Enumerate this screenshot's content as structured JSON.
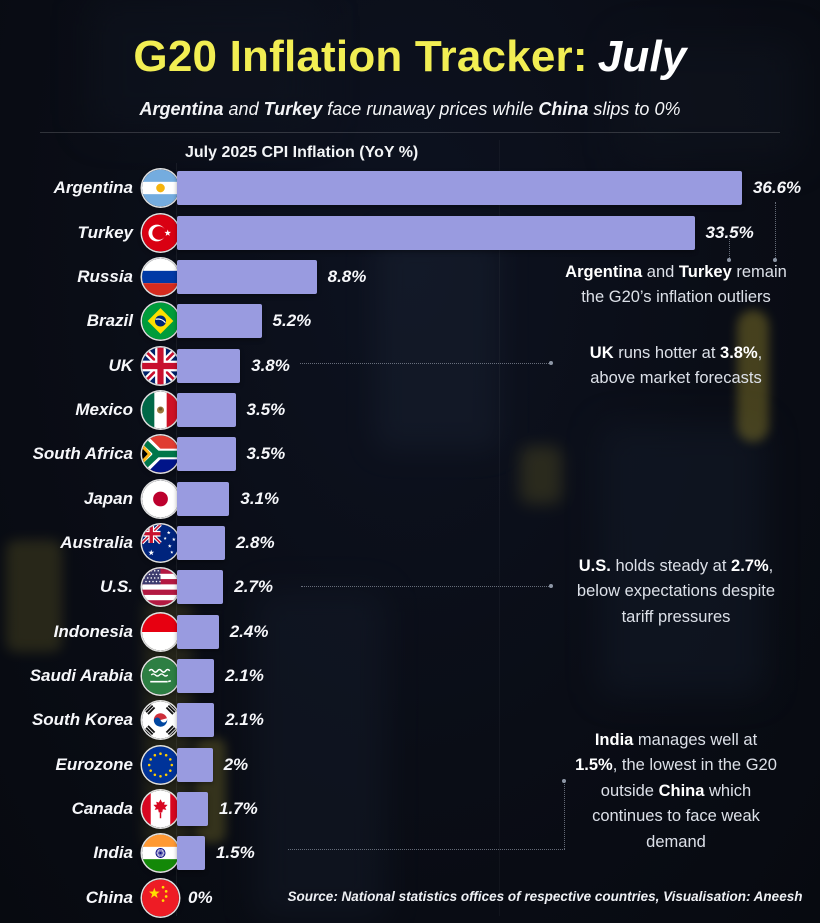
{
  "header": {
    "title_main": "G20 Inflation Tracker:",
    "title_accent": "July",
    "subtitle_segments": [
      [
        "Argentina",
        1
      ],
      [
        " and ",
        0
      ],
      [
        "Turkey",
        1
      ],
      [
        " face runaway prices while ",
        0
      ],
      [
        "China",
        1
      ],
      [
        " slips to 0%",
        0
      ]
    ],
    "chart_title": "July 2025 CPI Inflation (YoY %)"
  },
  "chart_data": {
    "type": "bar",
    "orientation": "horizontal",
    "title": "July 2025 CPI Inflation (YoY %)",
    "unit": "YoY %",
    "xlim": [
      0,
      36.6
    ],
    "grid": false,
    "bar_color": "#999be0",
    "categories": [
      "Argentina",
      "Turkey",
      "Russia",
      "Brazil",
      "UK",
      "Mexico",
      "South Africa",
      "Japan",
      "Australia",
      "U.S.",
      "Indonesia",
      "Saudi Arabia",
      "South Korea",
      "Eurozone",
      "Canada",
      "India",
      "China"
    ],
    "values": [
      36.6,
      33.5,
      8.8,
      5.2,
      3.8,
      3.5,
      3.5,
      3.1,
      2.8,
      2.7,
      2.4,
      2.1,
      2.1,
      2.0,
      1.7,
      1.5,
      0
    ],
    "value_labels": [
      "36.6%",
      "33.5%",
      "8.8%",
      "5.2%",
      "3.8%",
      "3.5%",
      "3.5%",
      "3.1%",
      "2.8%",
      "2.7%",
      "2.4%",
      "2.1%",
      "2.1%",
      "2%",
      "1.7%",
      "1.5%",
      "0%"
    ],
    "flags": [
      "argentina",
      "turkey",
      "russia",
      "brazil",
      "uk",
      "mexico",
      "south-africa",
      "japan",
      "australia",
      "us",
      "indonesia",
      "saudi-arabia",
      "south-korea",
      "eurozone",
      "canada",
      "india",
      "china"
    ]
  },
  "annotations": [
    {
      "id": "outliers",
      "lines": [
        [
          [
            "Argentina",
            1
          ],
          [
            " and ",
            0
          ],
          [
            "Turkey",
            1
          ],
          [
            " remain",
            0
          ]
        ],
        [
          [
            "the G20’s inflation outliers",
            0
          ]
        ]
      ]
    },
    {
      "id": "uk",
      "lines": [
        [
          [
            "UK",
            1
          ],
          [
            " runs hotter at ",
            0
          ],
          [
            "3.8%",
            1
          ],
          [
            ",",
            0
          ]
        ],
        [
          [
            "above market forecasts",
            0
          ]
        ]
      ]
    },
    {
      "id": "us",
      "lines": [
        [
          [
            "U.S.",
            1
          ],
          [
            " holds steady at ",
            0
          ],
          [
            "2.7%",
            1
          ],
          [
            ",",
            0
          ]
        ],
        [
          [
            "below expectations despite",
            0
          ]
        ],
        [
          [
            "tariff pressures",
            0
          ]
        ]
      ]
    },
    {
      "id": "india",
      "lines": [
        [
          [
            "India",
            1
          ],
          [
            " manages well at",
            0
          ]
        ],
        [
          [
            "1.5%",
            1
          ],
          [
            ", the lowest in the G20",
            0
          ]
        ],
        [
          [
            "outside ",
            0
          ],
          [
            "China",
            1
          ],
          [
            " which",
            0
          ]
        ],
        [
          [
            "continues to face weak",
            0
          ]
        ],
        [
          [
            "demand",
            0
          ]
        ]
      ]
    }
  ],
  "source": "Source: National statistics offices of respective countries, Visualisation: Aneesh",
  "colors": {
    "background": "#0a0d16",
    "bar": "#999be0",
    "title_yellow": "#f2ee53",
    "text": "#f6f7fa",
    "annotation_text": "#dce0e8",
    "dotted_line": "#8e97a6"
  }
}
